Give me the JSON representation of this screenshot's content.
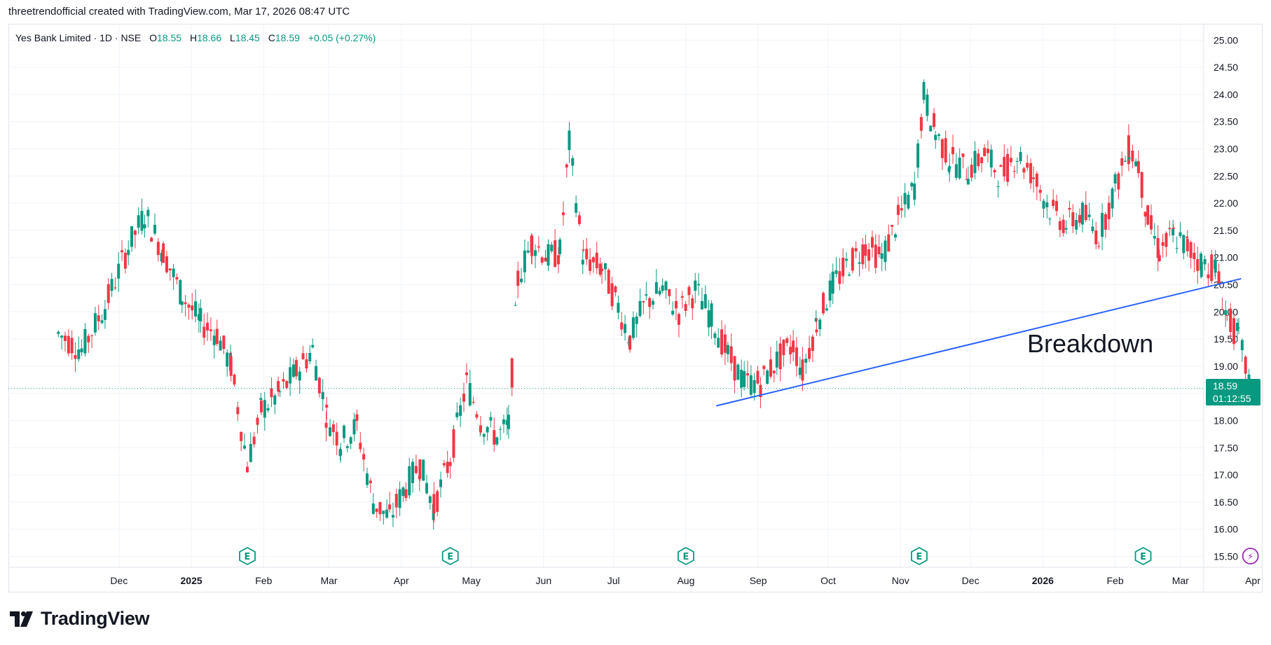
{
  "caption": "threetrendofficial created with TradingView.com, Mar 17, 2026 08:47 UTC",
  "header": {
    "symbol": "Yes Bank Limited · 1D · NSE",
    "o_label": "O",
    "o": "18.55",
    "h_label": "H",
    "h": "18.66",
    "l_label": "L",
    "l": "18.45",
    "c_label": "C",
    "c": "18.59",
    "change": "+0.05 (+0.27%)"
  },
  "price_badge": {
    "price": "18.59",
    "countdown": "01:12:55"
  },
  "annotation": "Breakdown",
  "brand": "TradingView",
  "colors": {
    "up": "#089981",
    "down": "#f23645",
    "trendline": "#2962ff",
    "grid": "#f0f3fa",
    "event_earnings": "#089981",
    "event_other": "#9c27b0"
  },
  "chart_data": {
    "type": "candlestick",
    "title": "Yes Bank Limited · 1D · NSE",
    "ylim": [
      15.3,
      25.3
    ],
    "y_ticks": [
      "25.00",
      "24.50",
      "24.00",
      "23.50",
      "23.00",
      "22.50",
      "22.00",
      "21.50",
      "21.00",
      "20.50",
      "20.00",
      "19.50",
      "19.00",
      "18.50",
      "18.00",
      "17.50",
      "17.00",
      "16.50",
      "16.00",
      "15.50"
    ],
    "x_ticks": [
      {
        "label": "Dec",
        "date": "2024-12-01",
        "bold": false
      },
      {
        "label": "2025",
        "date": "2025-01-01",
        "bold": true
      },
      {
        "label": "Feb",
        "date": "2025-02-01",
        "bold": false
      },
      {
        "label": "Mar",
        "date": "2025-03-01",
        "bold": false
      },
      {
        "label": "Apr",
        "date": "2025-04-01",
        "bold": false
      },
      {
        "label": "May",
        "date": "2025-05-01",
        "bold": false
      },
      {
        "label": "Jun",
        "date": "2025-06-01",
        "bold": false
      },
      {
        "label": "Jul",
        "date": "2025-07-01",
        "bold": false
      },
      {
        "label": "Aug",
        "date": "2025-08-01",
        "bold": false
      },
      {
        "label": "Sep",
        "date": "2025-09-01",
        "bold": false
      },
      {
        "label": "Oct",
        "date": "2025-10-01",
        "bold": false
      },
      {
        "label": "Nov",
        "date": "2025-11-01",
        "bold": false
      },
      {
        "label": "Dec",
        "date": "2025-12-01",
        "bold": false
      },
      {
        "label": "2026",
        "date": "2026-01-01",
        "bold": true
      },
      {
        "label": "Feb",
        "date": "2026-02-01",
        "bold": false
      },
      {
        "label": "Mar",
        "date": "2026-03-01",
        "bold": false
      },
      {
        "label": "Apr",
        "date": "2026-04-01",
        "bold": false
      }
    ],
    "x_range": [
      "2024-11-01",
      "2026-04-01"
    ],
    "series": [
      {
        "name": "Yes Bank Limited",
        "points": [
          {
            "date": "2024-11-05",
            "close": 19.6
          },
          {
            "date": "2024-11-15",
            "close": 19.3
          },
          {
            "date": "2024-11-25",
            "close": 20.1
          },
          {
            "date": "2024-12-05",
            "close": 21.2
          },
          {
            "date": "2024-12-12",
            "close": 21.8
          },
          {
            "date": "2024-12-20",
            "close": 21.1
          },
          {
            "date": "2024-12-28",
            "close": 20.3
          },
          {
            "date": "2025-01-05",
            "close": 19.8
          },
          {
            "date": "2025-01-12",
            "close": 19.6
          },
          {
            "date": "2025-01-18",
            "close": 19.0
          },
          {
            "date": "2025-01-25",
            "close": 17.2
          },
          {
            "date": "2025-01-31",
            "close": 18.2
          },
          {
            "date": "2025-02-08",
            "close": 18.5
          },
          {
            "date": "2025-02-15",
            "close": 18.9
          },
          {
            "date": "2025-02-22",
            "close": 19.3
          },
          {
            "date": "2025-02-28",
            "close": 18.1
          },
          {
            "date": "2025-03-06",
            "close": 17.6
          },
          {
            "date": "2025-03-13",
            "close": 17.9
          },
          {
            "date": "2025-03-20",
            "close": 16.5
          },
          {
            "date": "2025-03-27",
            "close": 16.2
          },
          {
            "date": "2025-04-03",
            "close": 16.8
          },
          {
            "date": "2025-04-09",
            "close": 17.2
          },
          {
            "date": "2025-04-15",
            "close": 16.4
          },
          {
            "date": "2025-04-22",
            "close": 17.3
          },
          {
            "date": "2025-04-29",
            "close": 18.7
          },
          {
            "date": "2025-05-05",
            "close": 18.0
          },
          {
            "date": "2025-05-12",
            "close": 17.7
          },
          {
            "date": "2025-05-17",
            "close": 17.9
          },
          {
            "date": "2025-05-21",
            "close": 20.6
          },
          {
            "date": "2025-05-27",
            "close": 21.3
          },
          {
            "date": "2025-06-03",
            "close": 21.0
          },
          {
            "date": "2025-06-08",
            "close": 21.1
          },
          {
            "date": "2025-06-12",
            "close": 23.1
          },
          {
            "date": "2025-06-18",
            "close": 21.0
          },
          {
            "date": "2025-06-26",
            "close": 20.8
          },
          {
            "date": "2025-07-03",
            "close": 20.1
          },
          {
            "date": "2025-07-08",
            "close": 19.5
          },
          {
            "date": "2025-07-15",
            "close": 20.2
          },
          {
            "date": "2025-07-22",
            "close": 20.4
          },
          {
            "date": "2025-07-29",
            "close": 20.0
          },
          {
            "date": "2025-08-05",
            "close": 20.4
          },
          {
            "date": "2025-08-12",
            "close": 19.9
          },
          {
            "date": "2025-08-19",
            "close": 19.2
          },
          {
            "date": "2025-08-26",
            "close": 18.7
          },
          {
            "date": "2025-09-02",
            "close": 18.7
          },
          {
            "date": "2025-09-09",
            "close": 19.1
          },
          {
            "date": "2025-09-16",
            "close": 19.4
          },
          {
            "date": "2025-09-20",
            "close": 18.9
          },
          {
            "date": "2025-09-26",
            "close": 19.8
          },
          {
            "date": "2025-10-03",
            "close": 20.5
          },
          {
            "date": "2025-10-10",
            "close": 20.9
          },
          {
            "date": "2025-10-17",
            "close": 21.2
          },
          {
            "date": "2025-10-24",
            "close": 21.0
          },
          {
            "date": "2025-10-31",
            "close": 21.7
          },
          {
            "date": "2025-11-07",
            "close": 22.3
          },
          {
            "date": "2025-11-11",
            "close": 24.0
          },
          {
            "date": "2025-11-16",
            "close": 23.3
          },
          {
            "date": "2025-11-22",
            "close": 22.8
          },
          {
            "date": "2025-11-30",
            "close": 22.6
          },
          {
            "date": "2025-12-07",
            "close": 22.9
          },
          {
            "date": "2025-12-14",
            "close": 22.5
          },
          {
            "date": "2025-12-21",
            "close": 22.9
          },
          {
            "date": "2025-12-28",
            "close": 22.5
          },
          {
            "date": "2026-01-04",
            "close": 21.9
          },
          {
            "date": "2026-01-11",
            "close": 21.6
          },
          {
            "date": "2026-01-18",
            "close": 21.8
          },
          {
            "date": "2026-01-25",
            "close": 21.4
          },
          {
            "date": "2026-02-01",
            "close": 22.3
          },
          {
            "date": "2026-02-07",
            "close": 23.0
          },
          {
            "date": "2026-02-11",
            "close": 22.7
          },
          {
            "date": "2026-02-15",
            "close": 21.7
          },
          {
            "date": "2026-02-20",
            "close": 21.1
          },
          {
            "date": "2026-02-26",
            "close": 21.4
          },
          {
            "date": "2026-03-04",
            "close": 21.2
          },
          {
            "date": "2026-03-10",
            "close": 20.9
          },
          {
            "date": "2026-03-16",
            "close": 20.8
          },
          {
            "date": "2026-03-21",
            "close": 19.9
          },
          {
            "date": "2026-03-26",
            "close": 19.5
          },
          {
            "date": "2026-03-31",
            "close": 18.6
          }
        ]
      },
      {
        "name": "trendline",
        "kind": "line",
        "points": [
          {
            "date": "2025-08-14",
            "value": 18.27
          },
          {
            "date": "2026-03-27",
            "value": 20.61
          }
        ]
      }
    ],
    "last_price": 18.59,
    "events": [
      {
        "type": "earnings",
        "date": "2025-01-25",
        "label": "E"
      },
      {
        "type": "earnings",
        "date": "2025-04-22",
        "label": "E"
      },
      {
        "type": "earnings",
        "date": "2025-08-01",
        "label": "E"
      },
      {
        "type": "earnings",
        "date": "2025-11-09",
        "label": "E"
      },
      {
        "type": "earnings",
        "date": "2026-02-13",
        "label": "E"
      },
      {
        "type": "other",
        "date": "2026-03-31",
        "label": "⚡"
      }
    ]
  }
}
